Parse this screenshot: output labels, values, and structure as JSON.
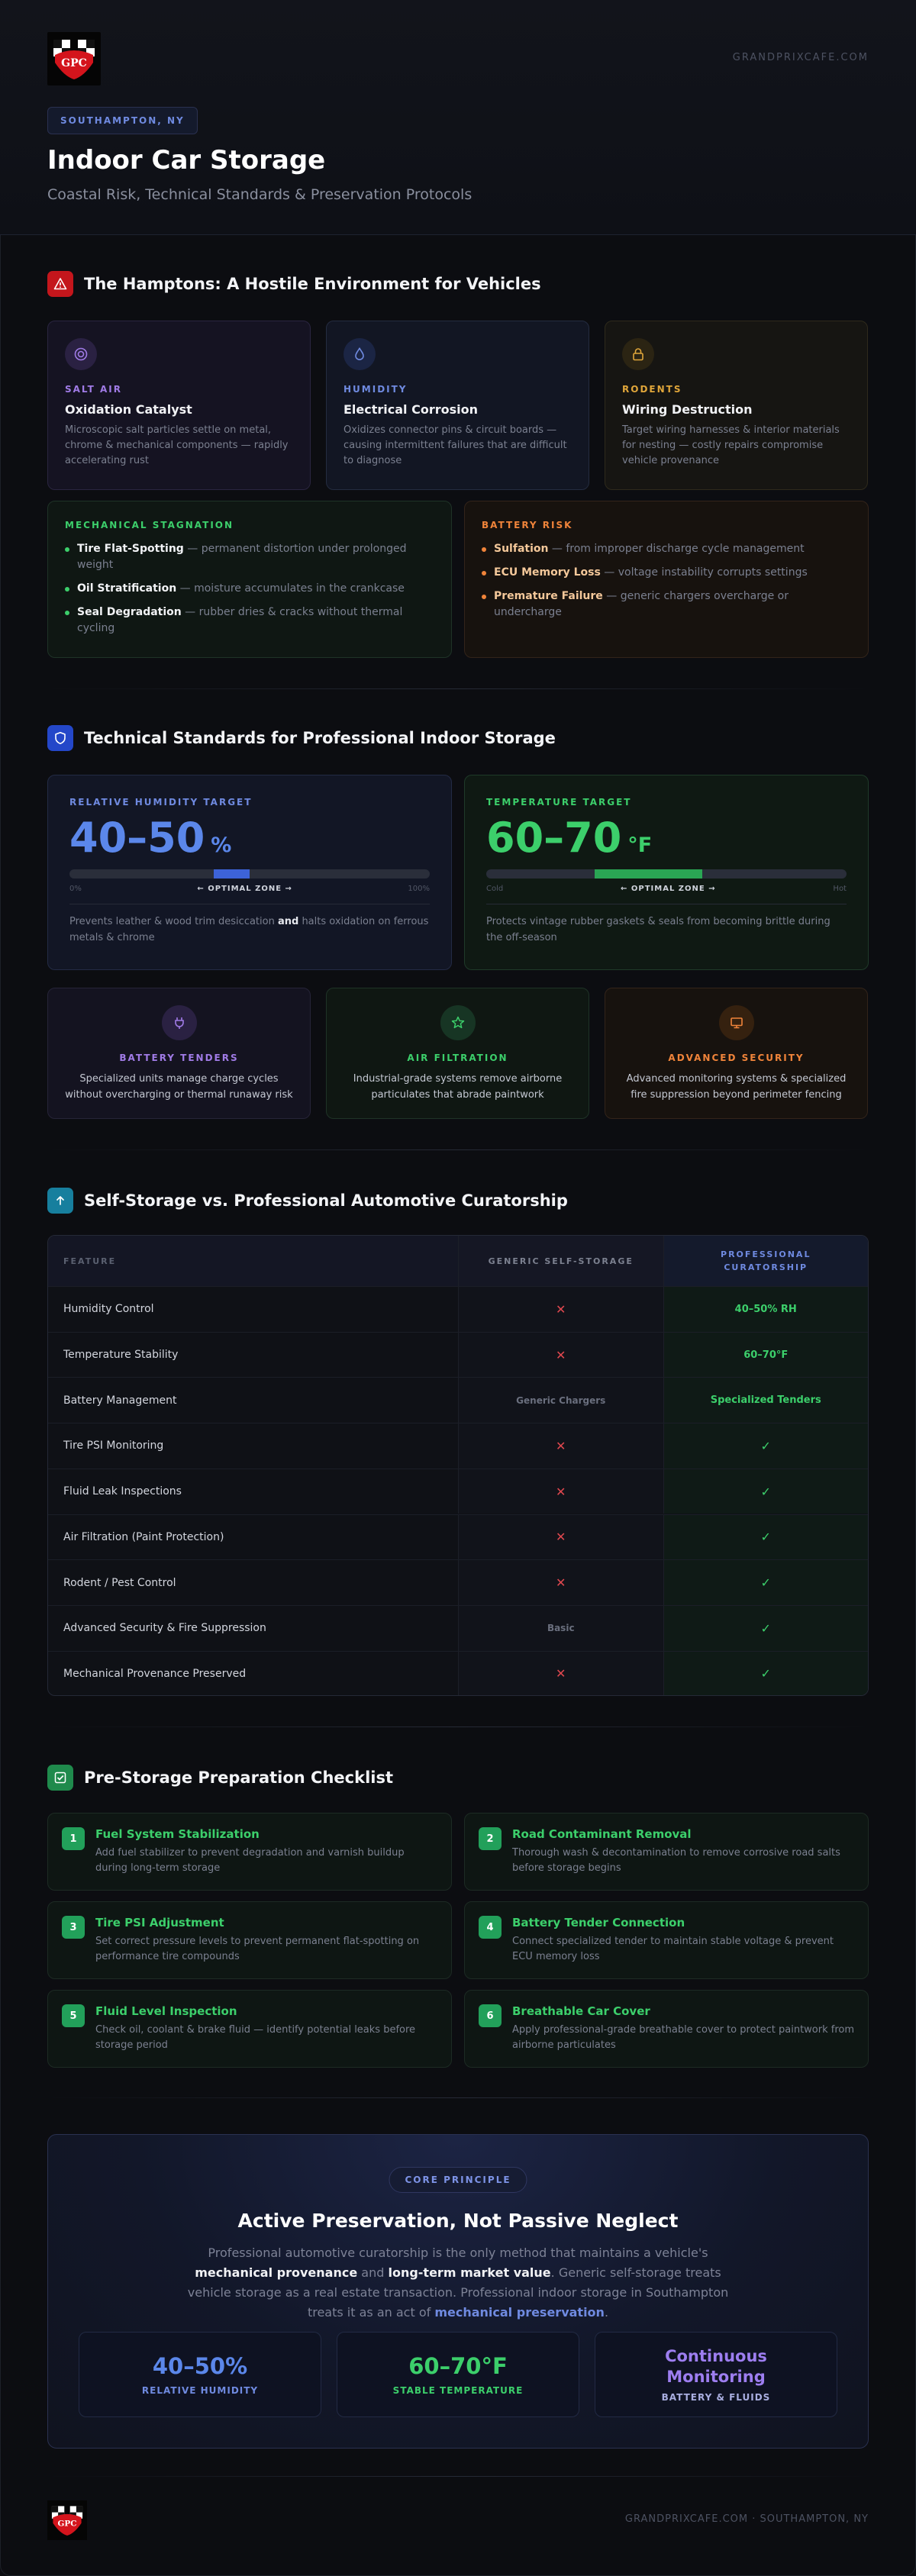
{
  "header": {
    "logo_alt": "GPC",
    "site": "GRANDPRIXCAFE.COM",
    "location": "SOUTHAMPTON, NY",
    "title": "Indoor Car Storage",
    "subtitle": "Coastal Risk, Technical Standards & Preservation Protocols"
  },
  "section1": {
    "title": "The Hamptons: A Hostile Environment for Vehicles",
    "cards": [
      {
        "kicker": "SALT AIR",
        "name": "Oxidation Catalyst",
        "desc": "Microscopic salt particles settle on metal, chrome & mechanical components — rapidly accelerating rust",
        "color": "#a07be6",
        "icon": "target-icon"
      },
      {
        "kicker": "HUMIDITY",
        "name": "Electrical Corrosion",
        "desc": "Oxidizes connector pins & circuit boards — causing intermittent failures that are difficult to diagnose",
        "color": "#6f8ae0",
        "icon": "droplet-icon"
      },
      {
        "kicker": "RODENTS",
        "name": "Wiring Destruction",
        "desc": "Target wiring harnesses & interior materials for nesting — costly repairs compromise vehicle provenance",
        "color": "#e0a63a",
        "icon": "lock-icon"
      }
    ],
    "mechanical": {
      "kicker": "MECHANICAL STAGNATION",
      "items": [
        {
          "b": "Tire Flat-Spotting",
          "t": " — permanent distortion under prolonged weight"
        },
        {
          "b": "Oil Stratification",
          "t": " — moisture accumulates in the crankcase"
        },
        {
          "b": "Seal Degradation",
          "t": " — rubber dries & cracks without thermal cycling"
        }
      ]
    },
    "battery": {
      "kicker": "BATTERY RISK",
      "items": [
        {
          "b": "Sulfation",
          "t": " — from improper discharge cycle management"
        },
        {
          "b": "ECU Memory Loss",
          "t": " — voltage instability corrupts settings"
        },
        {
          "b": "Premature Failure",
          "t": " — generic chargers overcharge or undercharge"
        }
      ]
    }
  },
  "section2": {
    "title": "Technical Standards for Professional Indoor Storage",
    "humidity": {
      "kicker": "RELATIVE HUMIDITY TARGET",
      "value": "40–50",
      "unit": "%",
      "scale_min": "0%",
      "scale_label": "← OPTIMAL ZONE →",
      "scale_max": "100%",
      "range": [
        0.4,
        0.5
      ],
      "desc_a": "Prevents leather & wood trim desiccation ",
      "desc_b": "and",
      "desc_c": " halts oxidation on ferrous metals & chrome"
    },
    "temperature": {
      "kicker": "TEMPERATURE TARGET",
      "value": "60–70",
      "unit": "°F",
      "scale_min": "Cold",
      "scale_label": "← OPTIMAL ZONE →",
      "scale_max": "Hot",
      "range": [
        0.3,
        0.6
      ],
      "desc": "Protects vintage rubber gaskets & seals from becoming brittle during the off-season"
    },
    "features": [
      {
        "kicker": "BATTERY TENDERS",
        "desc": "Specialized units manage charge cycles without overcharging or thermal runaway risk",
        "color": "#a07be6",
        "icon": "plug-icon"
      },
      {
        "kicker": "AIR FILTRATION",
        "desc": "Industrial-grade systems remove airborne particulates that abrade paintwork",
        "color": "#3ccf6b",
        "icon": "star-icon"
      },
      {
        "kicker": "ADVANCED SECURITY",
        "desc": "Advanced monitoring systems & specialized fire suppression beyond perimeter fencing",
        "color": "#f0843a",
        "icon": "monitor-icon"
      }
    ]
  },
  "section3": {
    "title": "Self-Storage vs. Professional Automotive Curatorship",
    "headers": [
      "FEATURE",
      "GENERIC SELF-STORAGE",
      "PROFESSIONAL CURATORSHIP"
    ],
    "rows": [
      {
        "feature": "Humidity Control",
        "generic": "✕",
        "generic_kind": "cross",
        "pro": "40–50% RH",
        "pro_kind": "good"
      },
      {
        "feature": "Temperature Stability",
        "generic": "✕",
        "generic_kind": "cross",
        "pro": "60–70°F",
        "pro_kind": "good"
      },
      {
        "feature": "Battery Management",
        "generic": "Generic Chargers",
        "generic_kind": "muted",
        "pro": "Specialized Tenders",
        "pro_kind": "good"
      },
      {
        "feature": "Tire PSI Monitoring",
        "generic": "✕",
        "generic_kind": "cross",
        "pro": "✓",
        "pro_kind": "check"
      },
      {
        "feature": "Fluid Leak Inspections",
        "generic": "✕",
        "generic_kind": "cross",
        "pro": "✓",
        "pro_kind": "check"
      },
      {
        "feature": "Air Filtration (Paint Protection)",
        "generic": "✕",
        "generic_kind": "cross",
        "pro": "✓",
        "pro_kind": "check"
      },
      {
        "feature": "Rodent / Pest Control",
        "generic": "✕",
        "generic_kind": "cross",
        "pro": "✓",
        "pro_kind": "check"
      },
      {
        "feature": "Advanced Security & Fire Suppression",
        "generic": "Basic",
        "generic_kind": "muted",
        "pro": "✓",
        "pro_kind": "check"
      },
      {
        "feature": "Mechanical Provenance Preserved",
        "generic": "✕",
        "generic_kind": "cross",
        "pro": "✓",
        "pro_kind": "check"
      }
    ]
  },
  "section4": {
    "title": "Pre-Storage Preparation Checklist",
    "steps": [
      {
        "n": "1",
        "title": "Fuel System Stabilization",
        "desc": "Add fuel stabilizer to prevent degradation and varnish buildup during long-term storage"
      },
      {
        "n": "2",
        "title": "Road Contaminant Removal",
        "desc": "Thorough wash & decontamination to remove corrosive road salts before storage begins"
      },
      {
        "n": "3",
        "title": "Tire PSI Adjustment",
        "desc": "Set correct pressure levels to prevent permanent flat-spotting on performance tire compounds"
      },
      {
        "n": "4",
        "title": "Battery Tender Connection",
        "desc": "Connect specialized tender to maintain stable voltage & prevent ECU memory loss"
      },
      {
        "n": "5",
        "title": "Fluid Level Inspection",
        "desc": "Check oil, coolant & brake fluid — identify potential leaks before storage period"
      },
      {
        "n": "6",
        "title": "Breathable Car Cover",
        "desc": "Apply professional-grade breathable cover to protect paintwork from airborne particulates"
      }
    ]
  },
  "core": {
    "badge": "CORE PRINCIPLE",
    "title": "Active Preservation, Not Passive Neglect",
    "t1": "Professional automotive curatorship is the only method that maintains a vehicle's ",
    "b1": "mechanical provenance",
    "t2": " and ",
    "b2": "long-term market value",
    "t3": ". Generic self-storage treats vehicle storage as a real estate transaction. Professional indoor storage in Southampton treats it as an act of ",
    "hl": "mechanical preservation",
    "t4": ".",
    "stats": [
      {
        "value": "40–50%",
        "label": "RELATIVE HUMIDITY",
        "color": "#5b87ea",
        "label_color": "#6f8ae0"
      },
      {
        "value": "60–70°F",
        "label": "STABLE TEMPERATURE",
        "color": "#3ccf6b",
        "label_color": "#3ccf6b"
      },
      {
        "value": "Continuous Monitoring",
        "label": "BATTERY & FLUIDS",
        "color": "#9d7ef0",
        "label_color": "#a9aee0"
      }
    ]
  },
  "footer": {
    "text": "GRANDPRIXCAFE.COM · SOUTHAMPTON, NY"
  }
}
